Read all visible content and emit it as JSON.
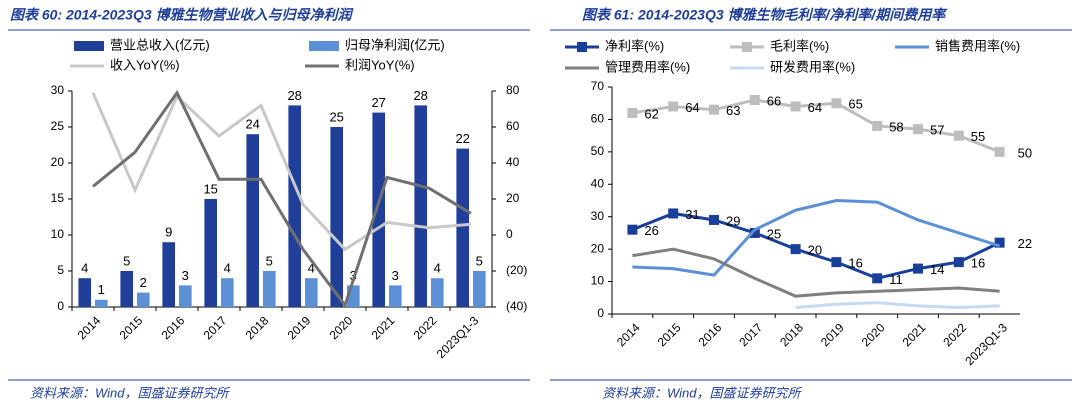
{
  "chart_data": [
    {
      "type": "bar",
      "title": "图表 60:  2014-2023Q3 博雅生物营业收入与归母净利润",
      "source": "资料来源：Wind，国盛证券研究所",
      "categories": [
        "2014",
        "2015",
        "2016",
        "2017",
        "2018",
        "2019",
        "2020",
        "2021",
        "2022",
        "2023Q1-3"
      ],
      "series": [
        {
          "name": "营业总收入(亿元)",
          "color": "#1f3f99",
          "values": [
            4,
            5,
            9,
            15,
            24,
            28,
            25,
            27,
            28,
            22
          ]
        },
        {
          "name": "归母净利润(亿元)",
          "color": "#5b8fd6",
          "values": [
            1,
            2,
            3,
            4,
            5,
            4,
            3,
            3,
            4,
            5
          ]
        },
        {
          "name": "收入YoY(%)",
          "color": "#c8c8c8",
          "axis": "y2",
          "values": [
            79,
            25,
            77,
            55,
            72,
            17,
            -8,
            7,
            4,
            6
          ]
        },
        {
          "name": "利润YoY(%)",
          "color": "#707070",
          "axis": "y2",
          "values": [
            27,
            46,
            79,
            31,
            31,
            -8,
            -39,
            32,
            26,
            12
          ]
        }
      ],
      "ylim": [
        0,
        30
      ],
      "yticks": [
        0,
        5,
        10,
        15,
        20,
        25,
        30
      ],
      "y2lim": [
        -40,
        80
      ],
      "y2ticks": [
        {
          "value": -40,
          "label": "(40)"
        },
        {
          "value": -20,
          "label": "(20)"
        },
        0,
        20,
        40,
        60,
        80
      ],
      "negative_tick_color": "#e00000"
    },
    {
      "type": "line",
      "title": "图表 61:  2014-2023Q3 博雅生物毛利率/净利率/期间费用率",
      "source": "资料来源：Wind，国盛证券研究所",
      "categories": [
        "2014",
        "2015",
        "2016",
        "2017",
        "2018",
        "2019",
        "2020",
        "2021",
        "2022",
        "2023Q1-3"
      ],
      "series": [
        {
          "name": "净利率(%)",
          "color": "#1a3f9a",
          "marker": "square",
          "data_labels": true,
          "values": [
            26,
            31,
            29,
            25,
            20,
            16,
            11,
            14,
            16,
            22
          ]
        },
        {
          "name": "毛利率(%)",
          "color": "#bdbdbd",
          "marker": "square",
          "data_labels": true,
          "values": [
            62,
            64,
            63,
            66,
            64,
            65,
            58,
            57,
            55,
            50
          ]
        },
        {
          "name": "销售费用率(%)",
          "color": "#5b8fd6",
          "values": [
            14.5,
            14,
            12,
            26,
            32,
            35,
            34.5,
            29,
            25,
            21
          ]
        },
        {
          "name": "管理费用率(%)",
          "color": "#7f7f7f",
          "values": [
            18,
            20,
            17,
            11,
            5.5,
            6.5,
            7,
            7.5,
            8,
            7
          ]
        },
        {
          "name": "研发费用率(%)",
          "color": "#c5d9f1",
          "values": [
            null,
            null,
            null,
            null,
            2,
            3,
            3.5,
            2.5,
            2,
            2.5
          ]
        }
      ],
      "ylim": [
        0,
        70
      ],
      "yticks": [
        0,
        10,
        20,
        30,
        40,
        50,
        60,
        70
      ]
    }
  ]
}
